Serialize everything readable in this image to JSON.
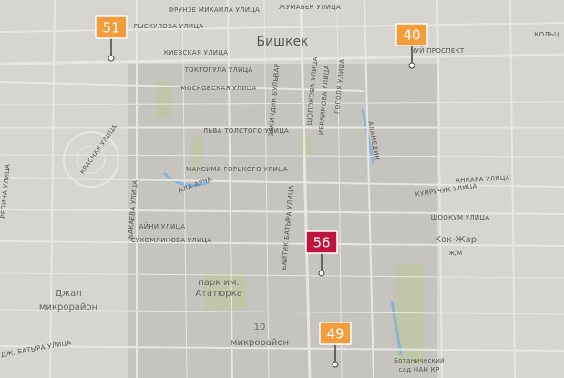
{
  "map": {
    "city": "Бишкек",
    "labels": [
      "ФРУНЗЕ МИХАИЛА УЛИЦА",
      "ЖУМАБЕК УЛИЦА",
      "РЫСКУЛОВА УЛИЦА",
      "КИЕВСКАЯ УЛИЦА",
      "ТОКТОГУЛА УЛИЦА",
      "МОСКОВСКАЯ УЛИЦА",
      "ЧУЙ ПРОСПЕКТ",
      "ЛЬВА ТОЛСТОГО УЛИЦА",
      "МАКСИМА ГОРЬКОГО УЛИЦА",
      "АНКАРА УЛИЦА",
      "КУЙРУЧУК УЛИЦА",
      "ШООКУМ УЛИЦА",
      "Кок-Жар",
      "ж/м",
      "АЙНИ УЛИЦА",
      "СУХОМЛИНОВА УЛИЦА",
      "парк им.",
      "Ататюрка",
      "10",
      "микрорайон",
      "Джал",
      "микрорайон",
      "Ботанический",
      "сад НАН КР",
      "БАКАЕВА УЛИЦА",
      "БАЙТИК БАТЫРА УЛИЦА",
      "ЭРКИНДИК БУЛЬВАР",
      "ШОПОКОВА УЛИЦА",
      "ИБРАИМОВА УЛИЦА",
      "ГОГОЛЯ УЛИЦА",
      "РЕПИНА УЛИЦА",
      "КРАСНАЯ УЛИЦА",
      "АЛА-АРЧА",
      "АЛАМЕДИН",
      "ДЖ. БАТЫРА УЛИЦА",
      "КОЛЬЦ"
    ],
    "markers": [
      {
        "value": "51",
        "level": "moderate"
      },
      {
        "value": "40",
        "level": "moderate"
      },
      {
        "value": "56",
        "level": "unhealthy"
      },
      {
        "value": "49",
        "level": "moderate"
      }
    ]
  }
}
